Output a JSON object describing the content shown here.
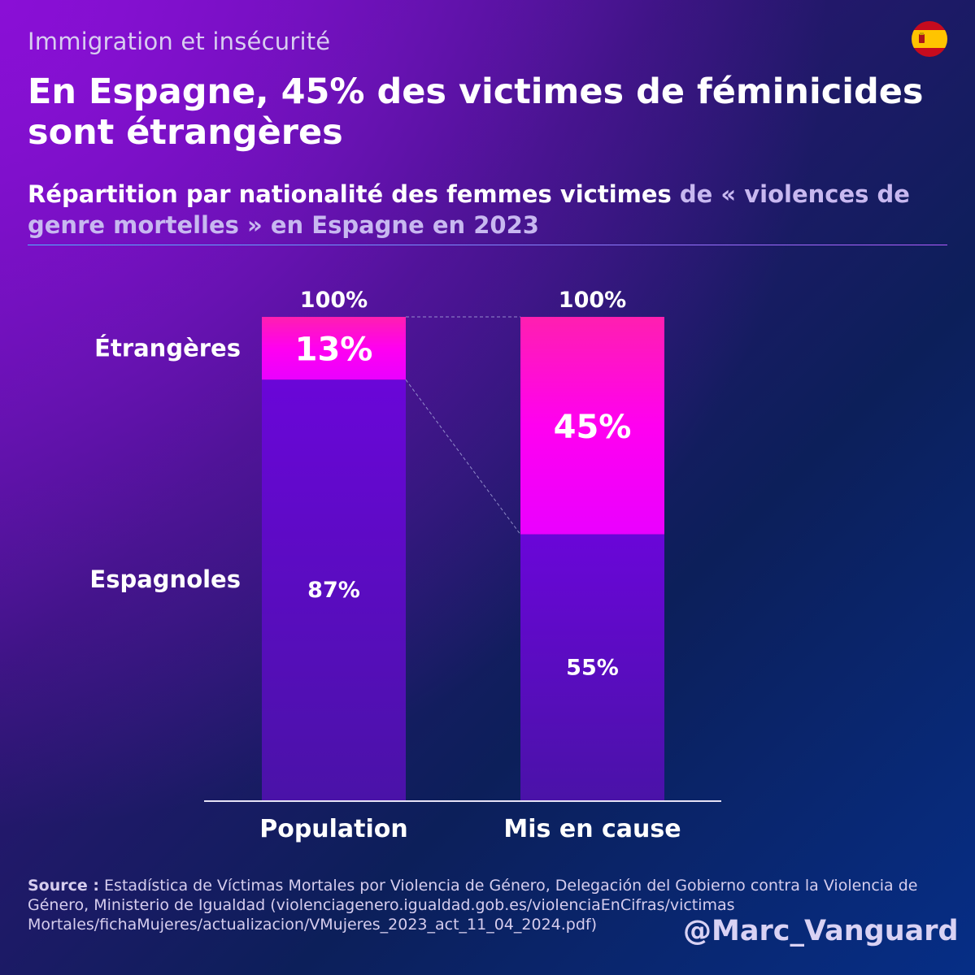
{
  "kicker": "Immigration et insécurité",
  "headline": "En Espagne, 45% des victimes de féminicides sont étrangères",
  "subhead": {
    "part1": "Répartition par nationalité des femmes victimes ",
    "part2": "de « violences de genre mortelles » en Espagne en 2023"
  },
  "flag_icon": "spain-flag-icon",
  "colors": {
    "foreign": "#ff00ee",
    "spanish": "#5a0cd0",
    "background": "#1a1c66"
  },
  "chart_data": {
    "type": "bar",
    "stacked": true,
    "categories": [
      "Population",
      "Mis en cause"
    ],
    "totals": [
      "100%",
      "100%"
    ],
    "series": [
      {
        "name": "Espagnoles",
        "values": [
          87,
          55
        ],
        "labels": [
          "87%",
          "55%"
        ]
      },
      {
        "name": "Étrangères",
        "values": [
          13,
          45
        ],
        "labels": [
          "13%",
          "45%"
        ]
      }
    ],
    "ylim": [
      0,
      100
    ]
  },
  "source": {
    "label": "Source :",
    "text": "Estadística de Víctimas Mortales por Violencia de Género, Delegación del Gobierno contra la Violencia de Género, Ministerio de Igualdad (violenciagenero.igualdad.gob.es/violenciaEnCifras/victimas Mortales/fichaMujeres/actualizacion/VMujeres_2023_act_11_04_2024.pdf)"
  },
  "handle": "@Marc_Vanguard"
}
